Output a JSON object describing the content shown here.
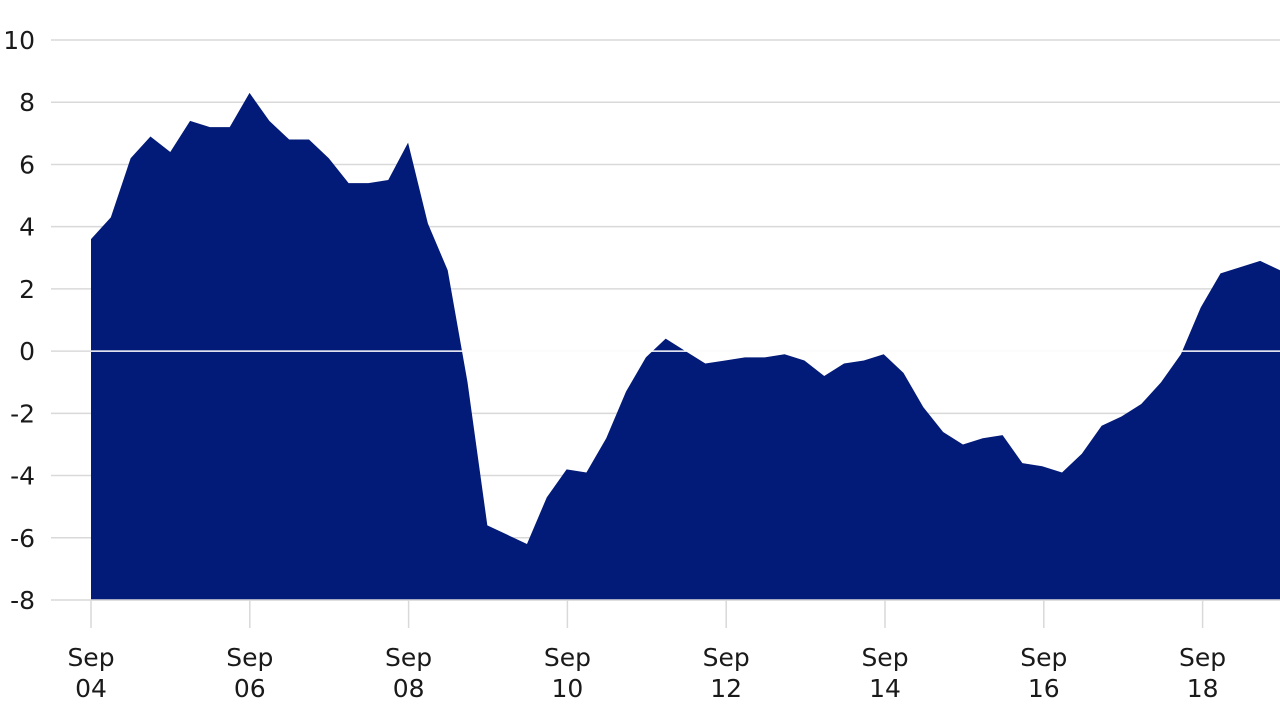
{
  "chart_data": {
    "type": "area",
    "title": "",
    "xlabel": "",
    "ylabel": "",
    "ylim": [
      -8,
      10
    ],
    "yticks": [
      10,
      8,
      6,
      4,
      2,
      0,
      -2,
      -4,
      -6,
      -8
    ],
    "ytick_labels": [
      "10",
      "8",
      "6",
      "4",
      "2",
      "0",
      "-2",
      "-4",
      "-6",
      "-8"
    ],
    "x_tick_labels": [
      {
        "line1": "Sep",
        "line2": "04"
      },
      {
        "line1": "Sep",
        "line2": "06"
      },
      {
        "line1": "Sep",
        "line2": "08"
      },
      {
        "line1": "Sep",
        "line2": "10"
      },
      {
        "line1": "Sep",
        "line2": "12"
      },
      {
        "line1": "Sep",
        "line2": "14"
      },
      {
        "line1": "Sep",
        "line2": "16"
      },
      {
        "line1": "Sep",
        "line2": "18"
      }
    ],
    "grid": true,
    "fill_color": "#021a78",
    "zero_line_color": "#ffffff",
    "grid_color": "#d9d9d9",
    "series": [
      {
        "x": [
          "2004-09",
          "2004-12",
          "2005-03",
          "2005-06",
          "2005-09",
          "2005-12",
          "2006-03",
          "2006-06",
          "2006-09",
          "2006-12",
          "2007-03",
          "2007-06",
          "2007-09",
          "2007-12",
          "2008-03",
          "2008-06",
          "2008-09",
          "2008-12",
          "2009-03",
          "2009-06",
          "2009-09",
          "2009-12",
          "2010-03",
          "2010-06",
          "2010-09",
          "2010-12",
          "2011-03",
          "2011-06",
          "2011-09",
          "2011-12",
          "2012-03",
          "2012-06",
          "2012-09",
          "2012-12",
          "2013-03",
          "2013-06",
          "2013-09",
          "2013-12",
          "2014-03",
          "2014-06",
          "2014-09",
          "2014-12",
          "2015-03",
          "2015-06",
          "2015-09",
          "2015-12",
          "2016-03",
          "2016-06",
          "2016-09",
          "2016-12",
          "2017-03",
          "2017-06",
          "2017-09",
          "2017-12",
          "2018-03",
          "2018-06",
          "2018-09",
          "2018-12",
          "2019-03",
          "2019-06",
          "2019-09"
        ],
        "values": [
          3.6,
          4.3,
          6.2,
          6.9,
          6.4,
          7.4,
          7.2,
          7.2,
          8.3,
          7.4,
          6.8,
          6.8,
          6.2,
          5.4,
          5.4,
          5.5,
          6.7,
          4.1,
          2.6,
          -1.0,
          -5.6,
          -5.9,
          -6.2,
          -4.7,
          -3.8,
          -3.9,
          -2.8,
          -1.3,
          -0.2,
          0.4,
          -0.0,
          -0.4,
          -0.3,
          -0.2,
          -0.2,
          -0.1,
          -0.3,
          -0.8,
          -0.4,
          -0.3,
          -0.1,
          -0.7,
          -1.8,
          -2.6,
          -3.0,
          -2.8,
          -2.7,
          -3.6,
          -3.7,
          -3.9,
          -3.3,
          -2.4,
          -2.1,
          -1.7,
          -1.0,
          -0.1,
          1.4,
          2.5,
          2.7,
          2.9,
          2.6
        ]
      }
    ]
  }
}
